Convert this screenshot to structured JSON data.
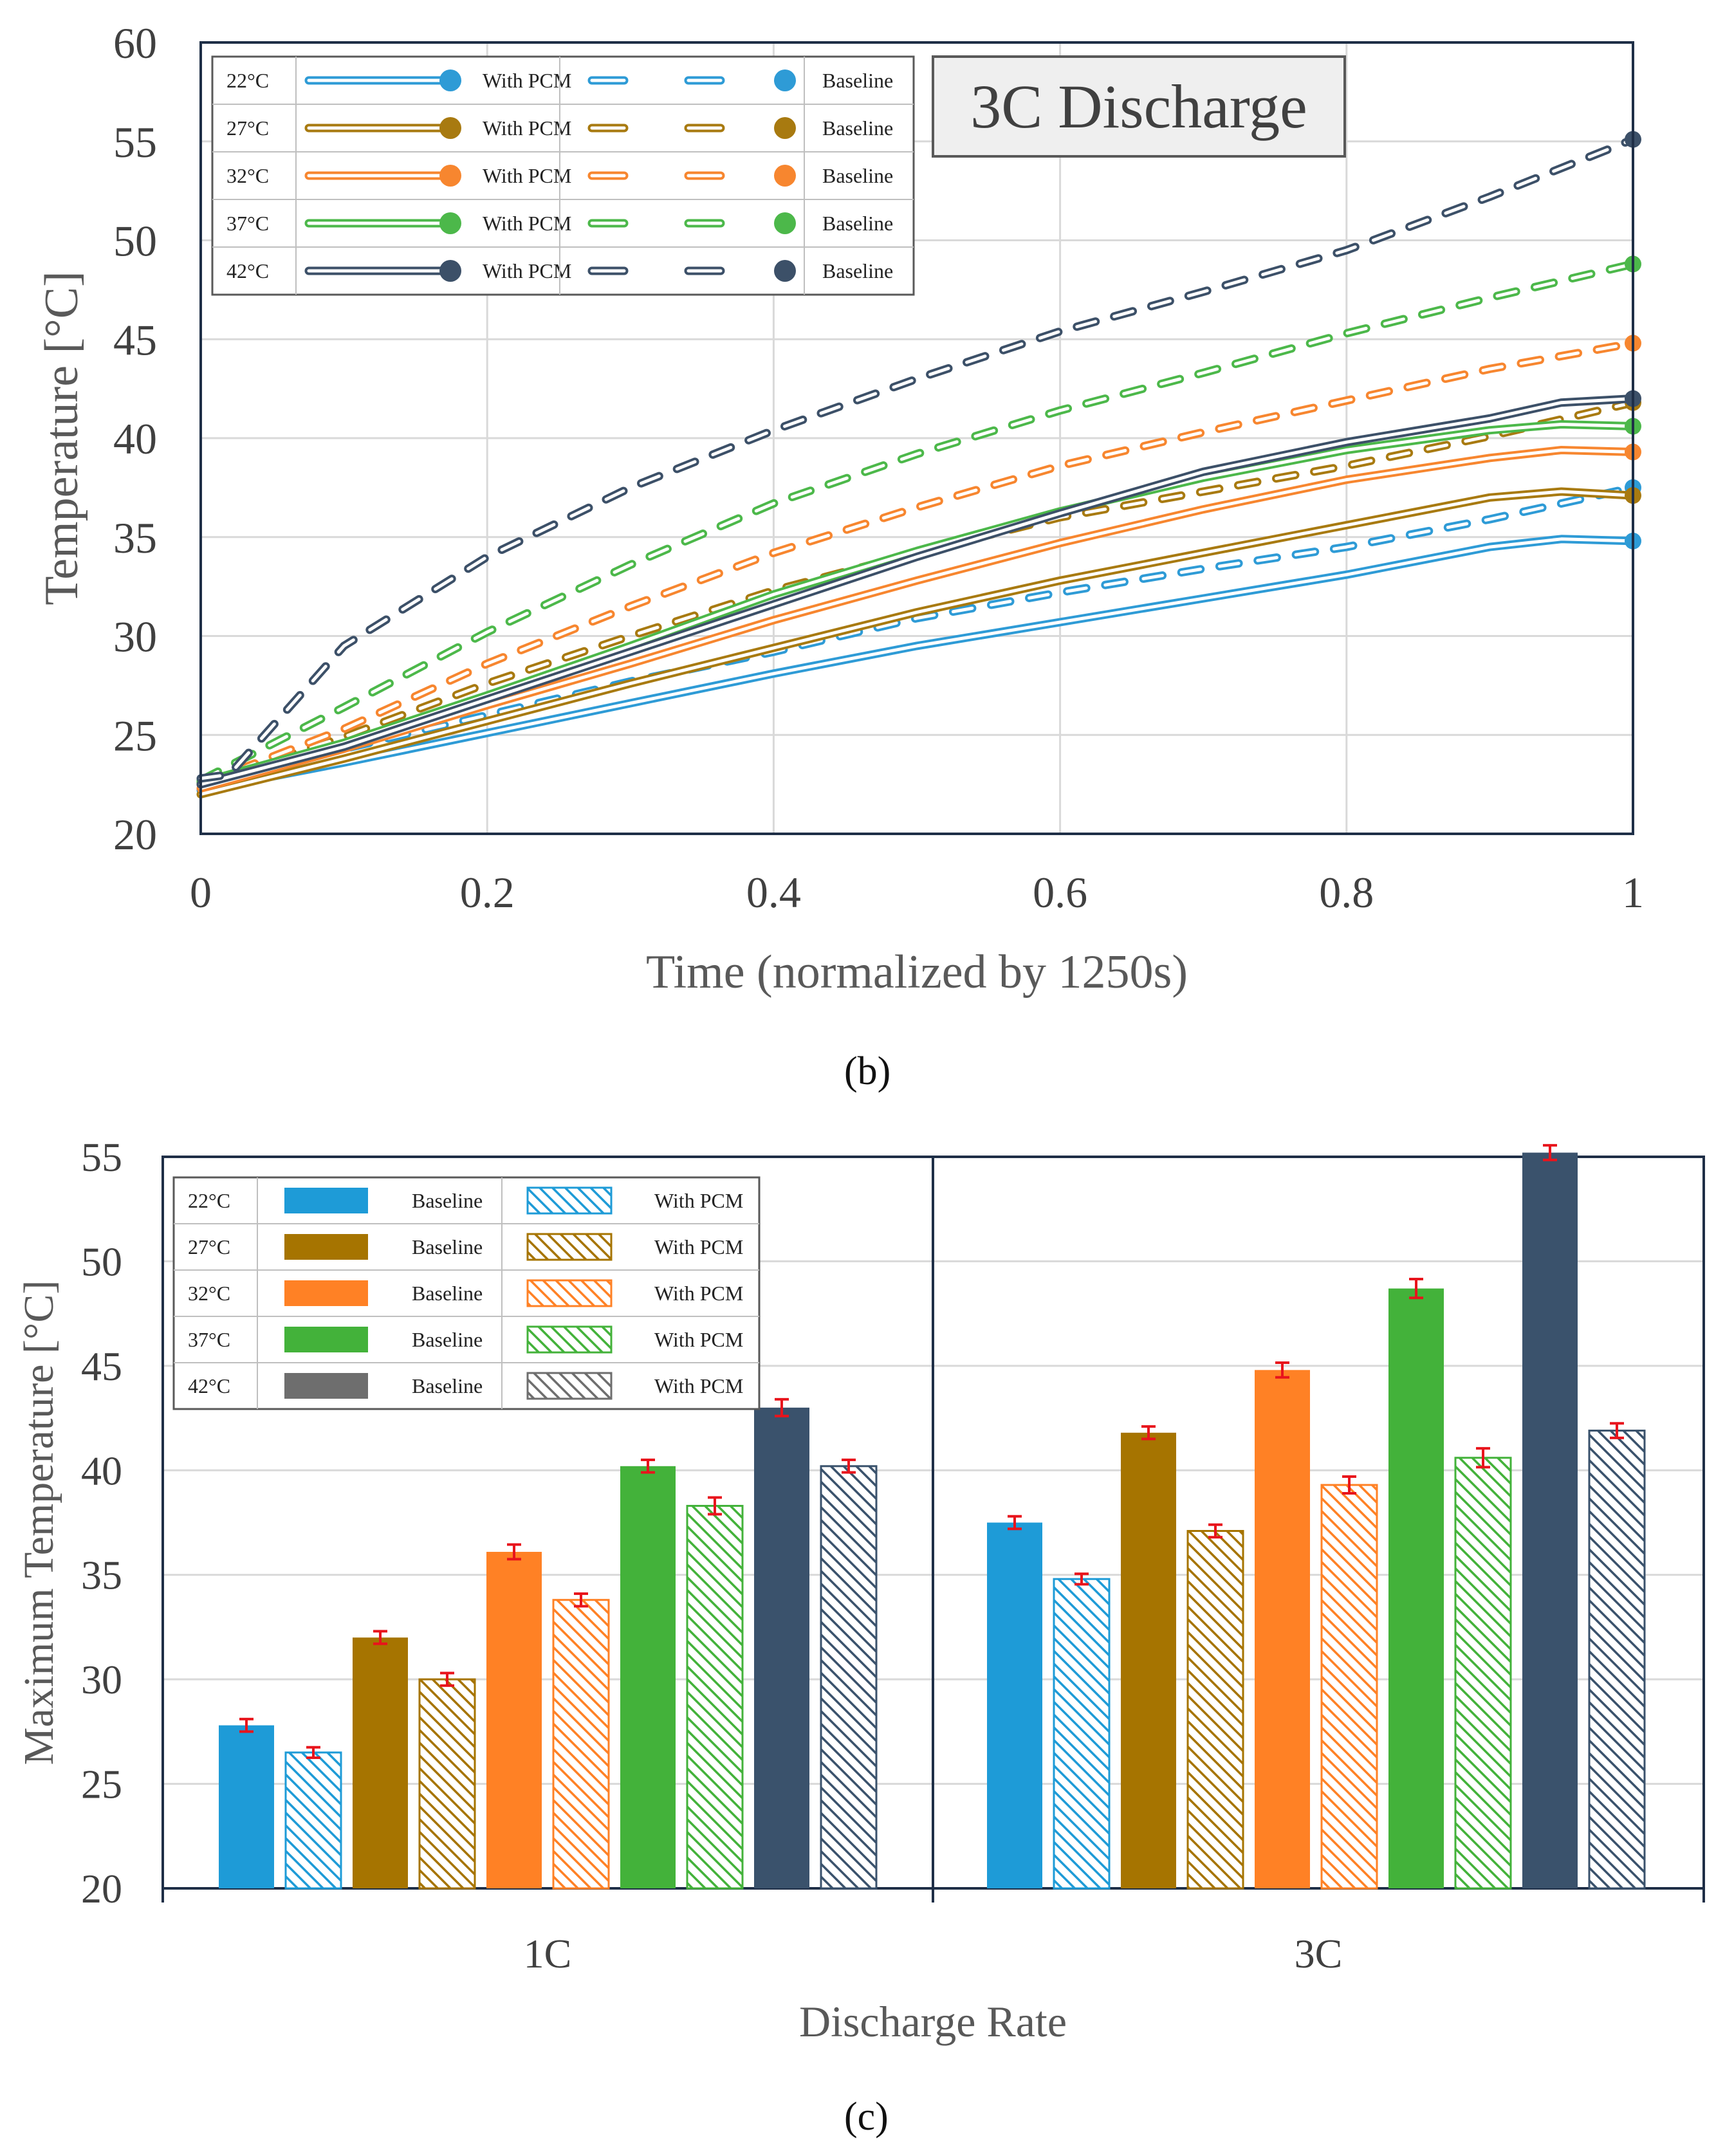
{
  "figure_b": {
    "label": "(b)",
    "chart_data": {
      "type": "line",
      "title": "3C Discharge",
      "xlabel": "Time (normalized by 1250s)",
      "ylabel": "Temperature [°C]",
      "xlim": [
        0,
        1
      ],
      "ylim": [
        20,
        60
      ],
      "xticks": [
        "0",
        "0.2",
        "0.4",
        "0.6",
        "0.8",
        "1"
      ],
      "xtick_values": [
        0,
        0.2,
        0.4,
        0.6,
        0.8,
        1
      ],
      "yticks": [
        "20",
        "25",
        "30",
        "35",
        "40",
        "45",
        "50",
        "55",
        "60"
      ],
      "ytick_values": [
        20,
        25,
        30,
        35,
        40,
        45,
        50,
        55,
        60
      ],
      "grid": true,
      "legend_position": "top-left",
      "legend": [
        {
          "temp": "22°C",
          "pcm": "With PCM",
          "base": "Baseline",
          "color": "#2E9BD6"
        },
        {
          "temp": "27°C",
          "pcm": "With PCM",
          "base": "Baseline",
          "color": "#A87A10"
        },
        {
          "temp": "32°C",
          "pcm": "With PCM",
          "base": "Baseline",
          "color": "#F7862F"
        },
        {
          "temp": "37°C",
          "pcm": "With PCM",
          "base": "Baseline",
          "color": "#4CB84A"
        },
        {
          "temp": "42°C",
          "pcm": "With PCM",
          "base": "Baseline",
          "color": "#3C5068"
        }
      ],
      "series": [
        {
          "name": "22°C With PCM",
          "style": "solid",
          "color": "#2E9BD6",
          "x": [
            0,
            0.1,
            0.2,
            0.3,
            0.4,
            0.5,
            0.6,
            0.7,
            0.8,
            0.9,
            0.95,
            1
          ],
          "y": [
            22.2,
            23.6,
            25.1,
            26.6,
            28.1,
            29.5,
            30.7,
            31.9,
            33.1,
            34.5,
            34.9,
            34.8
          ]
        },
        {
          "name": "22°C Baseline",
          "style": "dashed",
          "color": "#2E9BD6",
          "x": [
            0,
            0.1,
            0.2,
            0.3,
            0.4,
            0.5,
            0.6,
            0.7,
            0.8,
            0.9,
            1
          ],
          "y": [
            22.5,
            24.3,
            26.0,
            27.7,
            29.2,
            30.9,
            32.2,
            33.4,
            34.5,
            35.9,
            37.5
          ]
        },
        {
          "name": "27°C With PCM",
          "style": "solid",
          "color": "#A87A10",
          "x": [
            0,
            0.1,
            0.2,
            0.3,
            0.4,
            0.5,
            0.6,
            0.7,
            0.8,
            0.9,
            0.95,
            1
          ],
          "y": [
            22.0,
            23.8,
            25.7,
            27.6,
            29.4,
            31.2,
            32.8,
            34.2,
            35.6,
            37.0,
            37.3,
            37.1
          ]
        },
        {
          "name": "27°C Baseline",
          "style": "dashed",
          "color": "#A87A10",
          "x": [
            0,
            0.1,
            0.2,
            0.3,
            0.4,
            0.5,
            0.6,
            0.7,
            0.8,
            0.9,
            1
          ],
          "y": [
            22.6,
            24.9,
            27.6,
            30.0,
            32.3,
            34.2,
            36.0,
            37.3,
            38.6,
            40.1,
            41.8
          ]
        },
        {
          "name": "32°C With PCM",
          "style": "solid",
          "color": "#F7862F",
          "x": [
            0,
            0.1,
            0.2,
            0.3,
            0.4,
            0.5,
            0.6,
            0.7,
            0.8,
            0.9,
            0.95,
            1
          ],
          "y": [
            22.3,
            24.3,
            26.5,
            28.6,
            30.8,
            32.8,
            34.7,
            36.4,
            37.9,
            39.0,
            39.4,
            39.3
          ]
        },
        {
          "name": "32°C Baseline",
          "style": "dashed",
          "color": "#F7862F",
          "x": [
            0,
            0.1,
            0.2,
            0.3,
            0.4,
            0.5,
            0.6,
            0.7,
            0.8,
            0.9,
            1
          ],
          "y": [
            22.5,
            25.3,
            28.6,
            31.5,
            34.2,
            36.5,
            38.6,
            40.3,
            41.9,
            43.5,
            44.8
          ]
        },
        {
          "name": "37°C With PCM",
          "style": "solid",
          "color": "#4CB84A",
          "x": [
            0,
            0.1,
            0.2,
            0.3,
            0.4,
            0.5,
            0.6,
            0.7,
            0.8,
            0.9,
            0.95,
            1
          ],
          "y": [
            22.6,
            24.6,
            27.0,
            29.5,
            32.1,
            34.3,
            36.3,
            38.0,
            39.4,
            40.4,
            40.7,
            40.6
          ]
        },
        {
          "name": "37°C Baseline",
          "style": "dashed",
          "color": "#4CB84A",
          "x": [
            0,
            0.1,
            0.2,
            0.3,
            0.4,
            0.5,
            0.6,
            0.7,
            0.8,
            0.9,
            1
          ],
          "y": [
            22.7,
            26.4,
            30.2,
            33.6,
            36.7,
            39.2,
            41.4,
            43.3,
            45.3,
            47.1,
            48.8
          ]
        },
        {
          "name": "42°C With PCM",
          "style": "solid",
          "color": "#3C5068",
          "x": [
            0,
            0.1,
            0.2,
            0.3,
            0.4,
            0.5,
            0.6,
            0.7,
            0.8,
            0.9,
            0.95,
            1
          ],
          "y": [
            22.5,
            24.4,
            26.8,
            29.2,
            31.6,
            34.0,
            36.2,
            38.3,
            39.8,
            41.0,
            41.8,
            42.0
          ]
        },
        {
          "name": "42°C Baseline",
          "style": "dashed",
          "color": "#3C5068",
          "x": [
            0,
            0.02,
            0.1,
            0.2,
            0.3,
            0.4,
            0.5,
            0.6,
            0.7,
            0.8,
            0.9,
            1
          ],
          "y": [
            22.8,
            23.0,
            29.5,
            34.0,
            37.5,
            40.4,
            43.0,
            45.4,
            47.4,
            49.5,
            52.2,
            55.1
          ]
        }
      ]
    }
  },
  "figure_c": {
    "label": "(c)",
    "chart_data": {
      "type": "bar",
      "xlabel": "Discharge Rate",
      "ylabel": "Maximum Temperature [°C]",
      "categories": [
        "1C",
        "3C"
      ],
      "ylim": [
        20,
        55
      ],
      "yticks": [
        "20",
        "25",
        "30",
        "35",
        "40",
        "45",
        "50",
        "55"
      ],
      "ytick_values": [
        20,
        25,
        30,
        35,
        40,
        45,
        50,
        55
      ],
      "grid": true,
      "legend_position": "top-left",
      "legend": [
        {
          "temp": "22°C",
          "base": "Baseline",
          "pcm": "With PCM",
          "color": "#1E9BD7"
        },
        {
          "temp": "27°C",
          "base": "Baseline",
          "pcm": "With PCM",
          "color": "#A67400"
        },
        {
          "temp": "32°C",
          "base": "Baseline",
          "pcm": "With PCM",
          "color": "#FF8125"
        },
        {
          "temp": "37°C",
          "base": "Baseline",
          "pcm": "With PCM",
          "color": "#43B23A"
        },
        {
          "temp": "42°C",
          "base": "Baseline",
          "pcm": "With PCM",
          "color": "#6E6E6E"
        }
      ],
      "bars": [
        {
          "cat": "1C",
          "temp": "22°C",
          "kind": "Baseline",
          "value": 27.8,
          "err": 0.3,
          "color": "#1E9BD7"
        },
        {
          "cat": "1C",
          "temp": "22°C",
          "kind": "With PCM",
          "value": 26.5,
          "err": 0.25,
          "color": "#1E9BD7"
        },
        {
          "cat": "1C",
          "temp": "27°C",
          "kind": "Baseline",
          "value": 32.0,
          "err": 0.3,
          "color": "#A67400"
        },
        {
          "cat": "1C",
          "temp": "27°C",
          "kind": "With PCM",
          "value": 30.0,
          "err": 0.3,
          "color": "#A67400"
        },
        {
          "cat": "1C",
          "temp": "32°C",
          "kind": "Baseline",
          "value": 36.1,
          "err": 0.35,
          "color": "#FF8125"
        },
        {
          "cat": "1C",
          "temp": "32°C",
          "kind": "With PCM",
          "value": 33.8,
          "err": 0.3,
          "color": "#FF8125"
        },
        {
          "cat": "1C",
          "temp": "37°C",
          "kind": "Baseline",
          "value": 40.2,
          "err": 0.3,
          "color": "#43B23A"
        },
        {
          "cat": "1C",
          "temp": "37°C",
          "kind": "With PCM",
          "value": 38.3,
          "err": 0.4,
          "color": "#43B23A"
        },
        {
          "cat": "1C",
          "temp": "42°C",
          "kind": "Baseline",
          "value": 43.0,
          "err": 0.4,
          "color": "#3A526C"
        },
        {
          "cat": "1C",
          "temp": "42°C",
          "kind": "With PCM",
          "value": 40.2,
          "err": 0.3,
          "color": "#3A526C"
        },
        {
          "cat": "3C",
          "temp": "22°C",
          "kind": "Baseline",
          "value": 37.5,
          "err": 0.3,
          "color": "#1E9BD7"
        },
        {
          "cat": "3C",
          "temp": "22°C",
          "kind": "With PCM",
          "value": 34.8,
          "err": 0.25,
          "color": "#1E9BD7"
        },
        {
          "cat": "3C",
          "temp": "27°C",
          "kind": "Baseline",
          "value": 41.8,
          "err": 0.3,
          "color": "#A67400"
        },
        {
          "cat": "3C",
          "temp": "27°C",
          "kind": "With PCM",
          "value": 37.1,
          "err": 0.3,
          "color": "#A67400"
        },
        {
          "cat": "3C",
          "temp": "32°C",
          "kind": "Baseline",
          "value": 44.8,
          "err": 0.35,
          "color": "#FF8125"
        },
        {
          "cat": "3C",
          "temp": "32°C",
          "kind": "With PCM",
          "value": 39.3,
          "err": 0.4,
          "color": "#FF8125"
        },
        {
          "cat": "3C",
          "temp": "37°C",
          "kind": "Baseline",
          "value": 48.7,
          "err": 0.45,
          "color": "#43B23A"
        },
        {
          "cat": "3C",
          "temp": "37°C",
          "kind": "With PCM",
          "value": 40.6,
          "err": 0.45,
          "color": "#43B23A"
        },
        {
          "cat": "3C",
          "temp": "42°C",
          "kind": "Baseline",
          "value": 55.2,
          "err": 0.35,
          "color": "#3A526C"
        },
        {
          "cat": "3C",
          "temp": "42°C",
          "kind": "With PCM",
          "value": 41.9,
          "err": 0.35,
          "color": "#3A526C"
        }
      ]
    }
  }
}
